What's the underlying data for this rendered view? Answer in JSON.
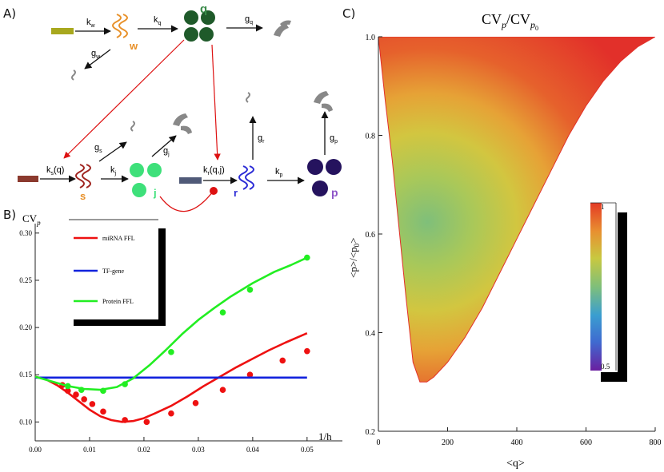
{
  "panels": {
    "A": "A)",
    "B": "B)",
    "C": "C)"
  },
  "diagram": {
    "species": {
      "w": "w",
      "q": "q",
      "s": "s",
      "j": "j",
      "r": "r",
      "p": "p"
    },
    "rates": {
      "kw": "k",
      "kw_sub": "w",
      "kq": "k",
      "kq_sub": "q",
      "gq": "g",
      "gq_sub": "q",
      "gw": "g",
      "gw_sub": "w",
      "ks": "k",
      "ks_sub": "s",
      "ks_arg": "(q)",
      "gs": "g",
      "gs_sub": "s",
      "gj": "g",
      "gj_sub": "j",
      "kj": "k",
      "kj_sub": "j",
      "kr": "k",
      "kr_sub": "r",
      "kr_arg": "(q,j)",
      "gr": "g",
      "gr_sub": "r",
      "kp": "k",
      "kp_sub": "p",
      "gp": "g",
      "gp_sub": "p"
    },
    "colors": {
      "w": "#e8912a",
      "q": "#1f5a2a",
      "s": "#a0241f",
      "j": "#3ee07a",
      "r": "#2b2bd6",
      "p": "#25135e",
      "degraded": "#888888",
      "arrow_red": "#dd1111"
    }
  },
  "chart_data": [
    {
      "panel": "B",
      "type": "line",
      "title": "",
      "ylabel": "CV",
      "ylabel_sub": "p",
      "xlabel": "1/h",
      "xlim": [
        0,
        0.05
      ],
      "ylim": [
        0.08,
        0.31
      ],
      "xticks": [
        0.0,
        0.01,
        0.02,
        0.03,
        0.04,
        0.05
      ],
      "xtick_labels": [
        "0.00",
        "0.01",
        "0.02",
        "0.03",
        "0.04",
        "0.05"
      ],
      "yticks": [
        0.1,
        0.15,
        0.2,
        0.25,
        0.3
      ],
      "ytick_labels": [
        "0.10",
        "0.15",
        "0.20",
        "0.25",
        "0.30"
      ],
      "legend": {
        "placement": "top-left",
        "entries": [
          "miRNA FFL",
          "TF-gene",
          "Protein FFL"
        ]
      },
      "series": [
        {
          "name": "miRNA FFL",
          "color": "#ee1111",
          "curve_x": [
            0,
            0.002,
            0.004,
            0.006,
            0.008,
            0.01,
            0.012,
            0.014,
            0.016,
            0.018,
            0.02,
            0.022,
            0.025,
            0.028,
            0.031,
            0.034,
            0.037,
            0.04,
            0.043,
            0.046,
            0.05
          ],
          "curve_y": [
            0.148,
            0.145,
            0.139,
            0.131,
            0.122,
            0.113,
            0.106,
            0.102,
            0.1,
            0.101,
            0.104,
            0.109,
            0.117,
            0.127,
            0.138,
            0.148,
            0.158,
            0.167,
            0.176,
            0.184,
            0.194
          ],
          "points_x": [
            0.005,
            0.006,
            0.0075,
            0.009,
            0.0105,
            0.0125,
            0.0165,
            0.0205,
            0.025,
            0.0295,
            0.0345,
            0.0395,
            0.0455,
            0.05
          ],
          "points_y": [
            0.139,
            0.133,
            0.129,
            0.124,
            0.119,
            0.111,
            0.102,
            0.1,
            0.109,
            0.12,
            0.134,
            0.15,
            0.165,
            0.175
          ]
        },
        {
          "name": "TF-gene",
          "color": "#1122dd",
          "curve_x": [
            0,
            0.05
          ],
          "curve_y": [
            0.147,
            0.147
          ],
          "points_x": [],
          "points_y": []
        },
        {
          "name": "Protein FFL",
          "color": "#22ee22",
          "curve_x": [
            0,
            0.003,
            0.006,
            0.009,
            0.012,
            0.015,
            0.018,
            0.021,
            0.024,
            0.027,
            0.03,
            0.033,
            0.036,
            0.04,
            0.044,
            0.047,
            0.05
          ],
          "curve_y": [
            0.148,
            0.143,
            0.138,
            0.135,
            0.134,
            0.137,
            0.146,
            0.16,
            0.176,
            0.193,
            0.208,
            0.221,
            0.233,
            0.247,
            0.259,
            0.266,
            0.274
          ],
          "points_x": [
            0.006,
            0.0085,
            0.0125,
            0.0165,
            0.025,
            0.0345,
            0.0395,
            0.05
          ],
          "points_y": [
            0.138,
            0.134,
            0.133,
            0.14,
            0.174,
            0.216,
            0.24,
            0.274
          ]
        }
      ]
    },
    {
      "panel": "C",
      "type": "heatmap",
      "title": "CV",
      "title_sub": "p",
      "title_mid": "/CV",
      "title_sub2": "p",
      "title_sub3": "0",
      "xlabel": "<q>",
      "ylabel": "<p>/<p",
      "ylabel_sub": "0",
      "ylabel_end": ">",
      "xlim": [
        0,
        800
      ],
      "ylim": [
        0.2,
        1.0
      ],
      "xticks": [
        0,
        200,
        400,
        600,
        800
      ],
      "xtick_labels": [
        "0",
        "200",
        "400",
        "600",
        "800"
      ],
      "yticks": [
        0.2,
        0.4,
        0.6,
        0.8,
        1.0
      ],
      "ytick_labels": [
        "0.2",
        "0.4",
        "0.6",
        "0.8",
        "1.0"
      ],
      "region_lower_boundary": {
        "q": [
          0,
          20,
          40,
          60,
          80,
          100,
          120,
          140,
          160,
          200,
          250,
          300,
          350,
          400,
          450,
          500,
          550,
          600,
          650,
          700,
          750,
          800
        ],
        "y": [
          1.0,
          0.87,
          0.75,
          0.61,
          0.47,
          0.34,
          0.3,
          0.3,
          0.31,
          0.34,
          0.39,
          0.45,
          0.52,
          0.59,
          0.66,
          0.73,
          0.8,
          0.86,
          0.91,
          0.95,
          0.98,
          1.0
        ]
      },
      "colorbar": {
        "min_label": "0.5",
        "max_label": "1",
        "min": 0.5,
        "max": 1.0,
        "colors": [
          "#6a1fa0",
          "#3f6ad0",
          "#3a9ed0",
          "#7fbf7a",
          "#c8c840",
          "#e89030",
          "#e43a25"
        ],
        "minimum_value": 0.68,
        "minimum_at_q": 140,
        "minimum_at_y": 0.66
      }
    }
  ]
}
